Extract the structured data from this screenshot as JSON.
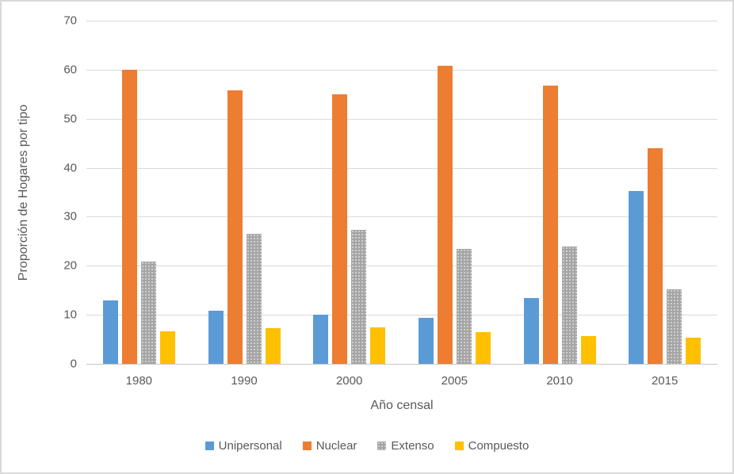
{
  "chart_data": {
    "type": "bar",
    "title": "",
    "categories": [
      "1980",
      "1990",
      "2000",
      "2005",
      "2010",
      "2015"
    ],
    "series": [
      {
        "name": "Unipersonal",
        "color": "#5B9BD5",
        "pattern": "solid",
        "values": [
          12.9,
          10.8,
          10.1,
          9.3,
          13.4,
          35.3
        ]
      },
      {
        "name": "Nuclear",
        "color": "#ED7D31",
        "pattern": "solid",
        "values": [
          59.9,
          55.7,
          55.0,
          60.8,
          56.8,
          44.0
        ]
      },
      {
        "name": "Extenso",
        "color": "#A5A5A5",
        "pattern": "dotted",
        "values": [
          20.8,
          26.5,
          27.4,
          23.4,
          24.0,
          15.2
        ]
      },
      {
        "name": "Compuesto",
        "color": "#FFC000",
        "pattern": "solid",
        "values": [
          6.6,
          7.3,
          7.4,
          6.4,
          5.6,
          5.4
        ]
      }
    ],
    "xlabel": "Año censal",
    "ylabel": "Proporción de Hogares por tipo",
    "ylim": [
      0,
      70
    ],
    "ytick_step": 10,
    "yticks": [
      "0",
      "10",
      "20",
      "30",
      "40",
      "50",
      "60",
      "70"
    ],
    "grid": "horizontal-only",
    "legend_position": "bottom-center",
    "colors": {
      "gridline": "#d9d9d9",
      "axis_text": "#595959",
      "frame_border": "#d9d9d9",
      "background": "#ffffff"
    }
  }
}
